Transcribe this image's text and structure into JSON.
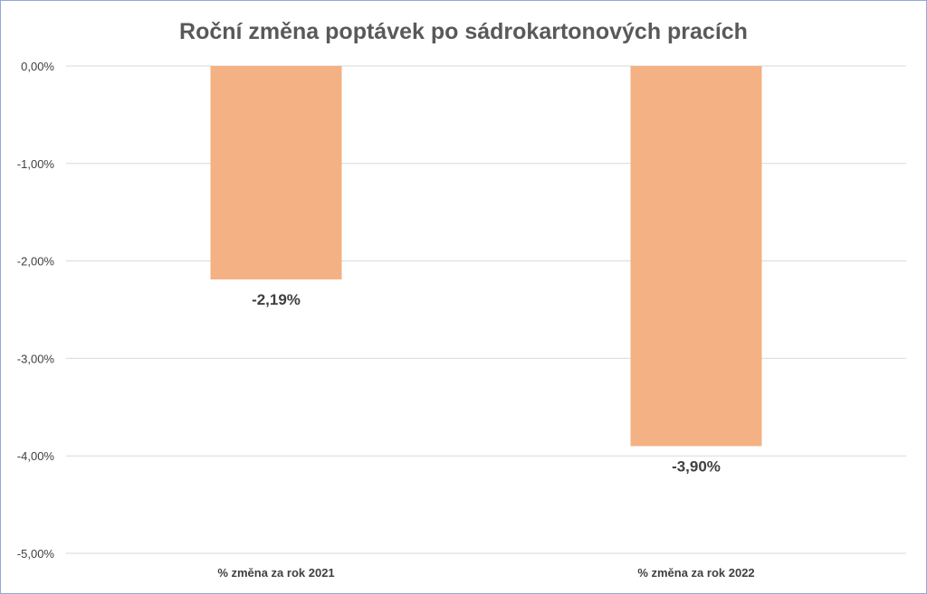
{
  "chart_data": {
    "type": "bar",
    "title": "Roční změna poptávek po sádrokartonových pracích",
    "categories": [
      "% změna za rok 2021",
      "% změna za rok 2022"
    ],
    "values": [
      -2.19,
      -3.9
    ],
    "data_labels": [
      "-2,19%",
      "-3,90%"
    ],
    "y_ticks": [
      0,
      -1,
      -2,
      -3,
      -4,
      -5
    ],
    "y_tick_labels": [
      "0,00%",
      "-1,00%",
      "-2,00%",
      "-3,00%",
      "-4,00%",
      "-5,00%"
    ],
    "ylim": [
      -5,
      0
    ],
    "xlabel": "",
    "ylabel": "",
    "grid": true,
    "legend": "none",
    "bar_color": "#f4b183"
  }
}
